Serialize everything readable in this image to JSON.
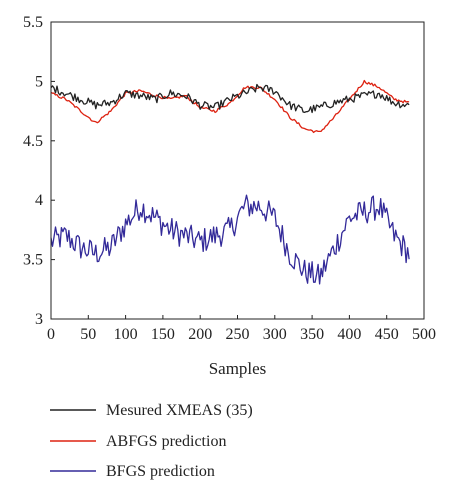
{
  "chart_data": {
    "type": "line",
    "xlabel": "Samples",
    "ylabel": "",
    "xlim": [
      0,
      500
    ],
    "ylim": [
      3,
      5.5
    ],
    "xticks": [
      0,
      50,
      100,
      150,
      200,
      250,
      300,
      350,
      400,
      450,
      500
    ],
    "yticks": [
      3,
      3.5,
      4,
      4.5,
      5,
      5.5
    ],
    "grid": false,
    "legend_position": "below",
    "series": [
      {
        "name": "Mesured XMEAS (35)",
        "color": "#222222",
        "x": [
          0,
          20,
          40,
          60,
          80,
          100,
          120,
          140,
          160,
          180,
          200,
          220,
          240,
          260,
          280,
          300,
          320,
          340,
          360,
          380,
          400,
          420,
          440,
          460,
          480
        ],
        "y": [
          4.95,
          4.9,
          4.85,
          4.8,
          4.82,
          4.9,
          4.88,
          4.85,
          4.9,
          4.88,
          4.8,
          4.78,
          4.85,
          4.9,
          4.95,
          4.92,
          4.8,
          4.75,
          4.78,
          4.82,
          4.85,
          4.88,
          4.9,
          4.82,
          4.8
        ]
      },
      {
        "name": "ABFGS prediction",
        "color": "#dd2211",
        "x": [
          0,
          20,
          40,
          60,
          80,
          100,
          120,
          140,
          160,
          180,
          200,
          220,
          240,
          260,
          280,
          300,
          320,
          340,
          360,
          380,
          400,
          420,
          440,
          460,
          480
        ],
        "y": [
          4.9,
          4.85,
          4.75,
          4.65,
          4.75,
          4.9,
          4.92,
          4.88,
          4.85,
          4.88,
          4.78,
          4.75,
          4.82,
          4.95,
          4.95,
          4.85,
          4.7,
          4.6,
          4.57,
          4.7,
          4.85,
          5.0,
          4.95,
          4.85,
          4.82
        ]
      },
      {
        "name": "BFGS prediction",
        "color": "#332a99",
        "x": [
          0,
          20,
          40,
          60,
          80,
          100,
          120,
          140,
          160,
          180,
          200,
          220,
          240,
          260,
          280,
          300,
          320,
          340,
          360,
          380,
          400,
          420,
          440,
          460,
          480
        ],
        "y": [
          3.65,
          3.7,
          3.6,
          3.55,
          3.6,
          3.8,
          3.95,
          3.85,
          3.75,
          3.7,
          3.65,
          3.7,
          3.75,
          3.95,
          3.95,
          3.85,
          3.55,
          3.4,
          3.35,
          3.6,
          3.85,
          3.9,
          3.95,
          3.7,
          3.55
        ]
      }
    ]
  }
}
